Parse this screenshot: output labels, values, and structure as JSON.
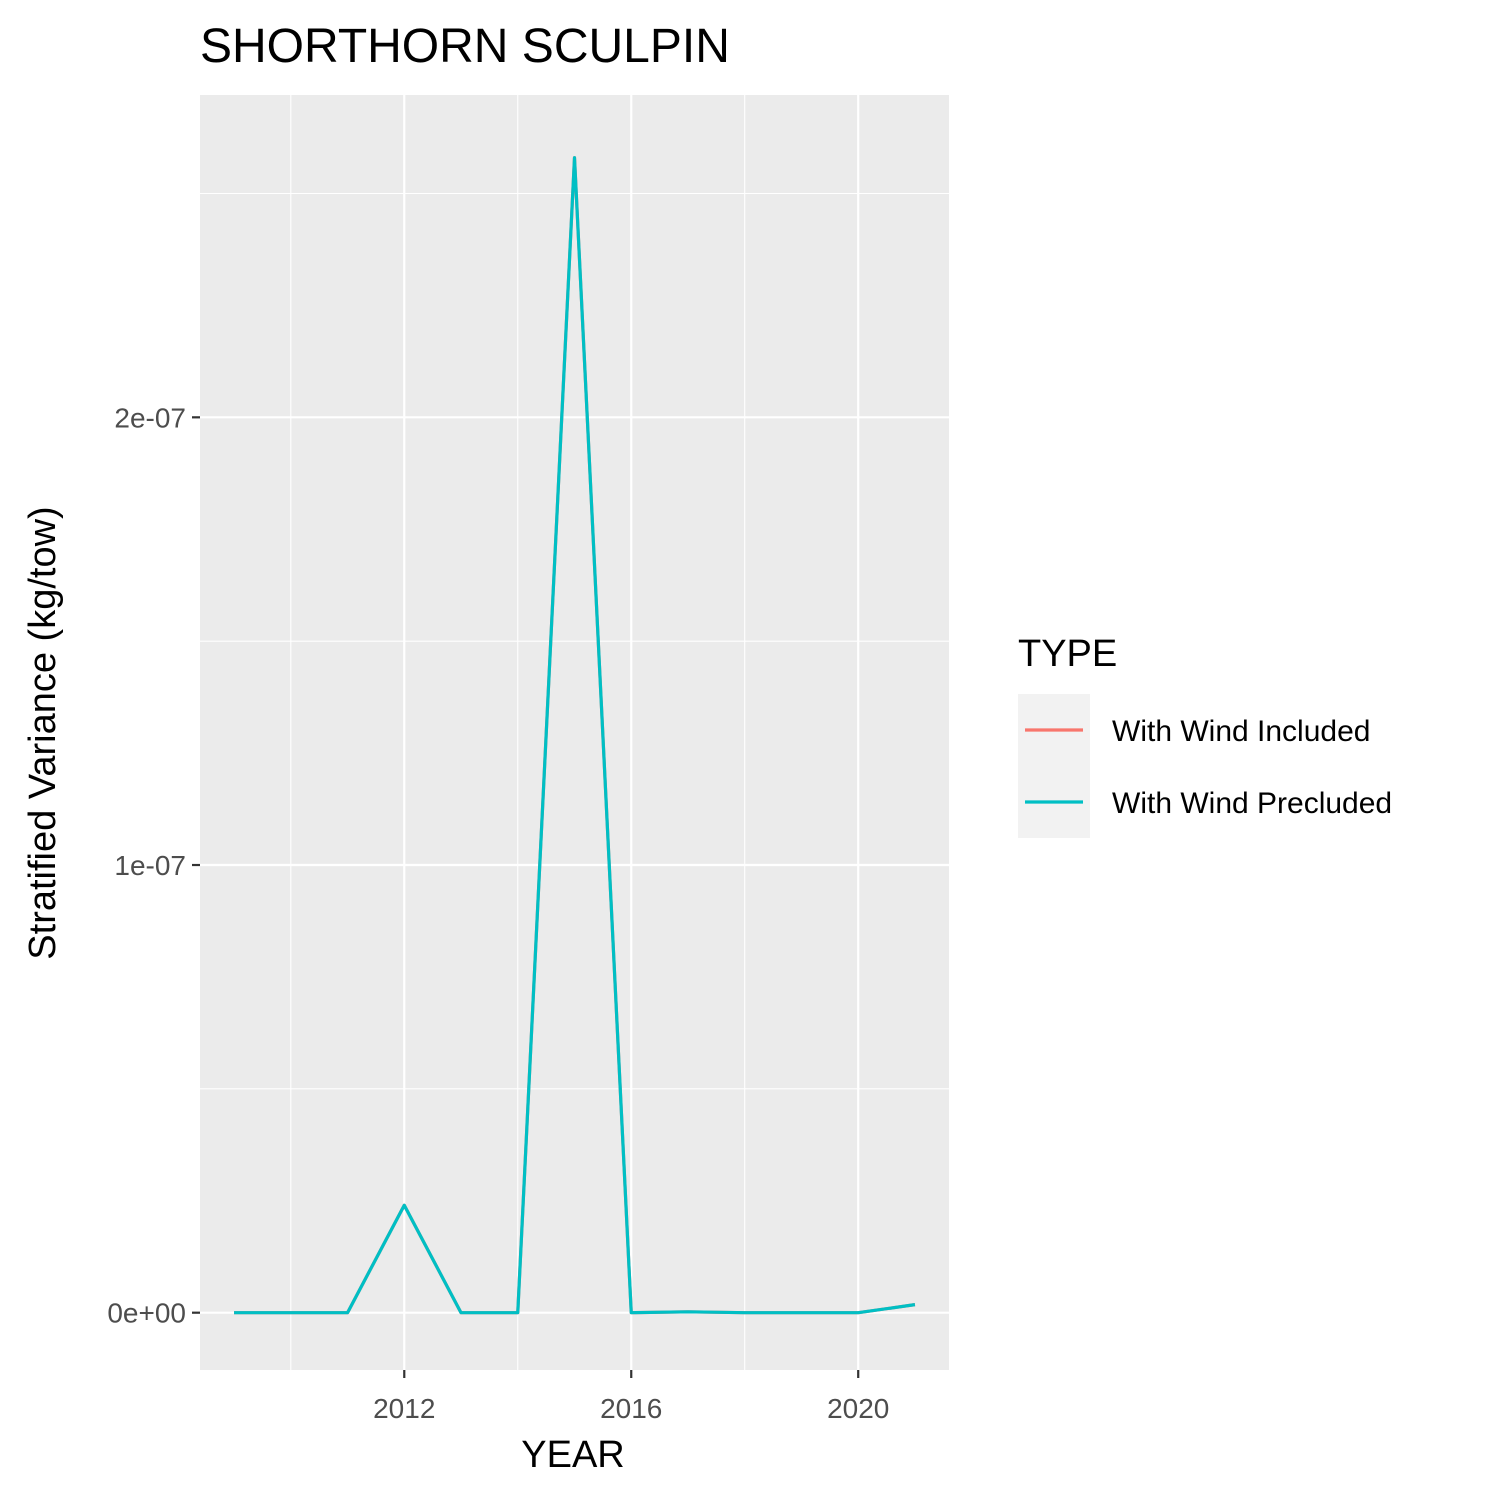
{
  "chart_data": {
    "type": "line",
    "title": "SHORTHORN SCULPIN",
    "xlabel": "YEAR",
    "ylabel": "Stratified Variance (kg/tow)",
    "x": [
      2009,
      2010,
      2011,
      2012,
      2013,
      2014,
      2015,
      2016,
      2017,
      2018,
      2019,
      2020,
      2021
    ],
    "xlim": [
      2008.4,
      2021.6
    ],
    "ylim": [
      -1.28e-08,
      2.72e-07
    ],
    "x_ticks": [
      2012,
      2016,
      2020
    ],
    "x_tick_labels": [
      "2012",
      "2016",
      "2020"
    ],
    "y_ticks": [
      0,
      1e-07,
      2e-07
    ],
    "y_tick_labels": [
      "0e+00",
      "1e-07",
      "2e-07"
    ],
    "grid": true,
    "legend": {
      "title": "TYPE",
      "position": "right"
    },
    "series": [
      {
        "name": "With Wind Included",
        "color": "#F8766D",
        "values": [
          0,
          0,
          0,
          2.4e-08,
          0,
          0,
          2.58e-07,
          0,
          2e-10,
          0,
          0,
          0,
          1.8e-09
        ]
      },
      {
        "name": "With Wind Precluded",
        "color": "#00BFC4",
        "values": [
          0,
          0,
          0,
          2.4e-08,
          0,
          0,
          2.58e-07,
          0,
          2e-10,
          0,
          0,
          0,
          1.8e-09
        ]
      }
    ]
  }
}
